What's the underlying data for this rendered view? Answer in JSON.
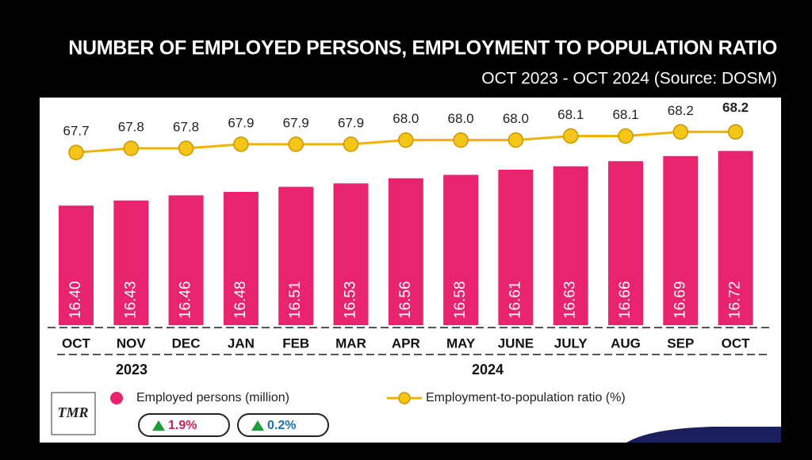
{
  "chart_data": {
    "type": "bar-line",
    "title": "NUMBER OF EMPLOYED PERSONS, EMPLOYMENT TO POPULATION RATIO",
    "subtitle": "OCT 2023 - OCT 2024 (Source: DOSM)",
    "categories": [
      "OCT",
      "NOV",
      "DEC",
      "JAN",
      "FEB",
      "MAR",
      "APR",
      "MAY",
      "JUNE",
      "JULY",
      "AUG",
      "SEP",
      "OCT"
    ],
    "groups": [
      "2023",
      "2024"
    ],
    "series": [
      {
        "name": "Employed persons (million)",
        "color": "#e8246f",
        "type": "bar",
        "values": [
          16.4,
          16.43,
          16.46,
          16.48,
          16.51,
          16.53,
          16.56,
          16.58,
          16.61,
          16.63,
          16.66,
          16.69,
          16.72
        ],
        "value_labels": [
          "16.40",
          "16.43",
          "16.46",
          "16.48",
          "16.51",
          "16.53",
          "16.56",
          "16.58",
          "16.61",
          "16.63",
          "16.66",
          "16.69",
          "16.72"
        ]
      },
      {
        "name": "Employment-to-population ratio (%)",
        "color": "#f0b400",
        "type": "line",
        "axis": "y2",
        "values": [
          67.7,
          67.8,
          67.8,
          67.9,
          67.9,
          67.9,
          68.0,
          68.0,
          68.0,
          68.1,
          68.1,
          68.2,
          68.2
        ],
        "value_labels": [
          "67.7",
          "67.8",
          "67.8",
          "67.9",
          "67.9",
          "67.9",
          "68.0",
          "68.0",
          "68.0",
          "68.1",
          "68.1",
          "68.2",
          "68.2"
        ]
      }
    ],
    "ylim": [
      15.7,
      17.0
    ],
    "y2lim": [
      63.5,
      68.9
    ],
    "annotations": [
      "1.9%",
      "0.2%"
    ],
    "logo": "TMR"
  }
}
